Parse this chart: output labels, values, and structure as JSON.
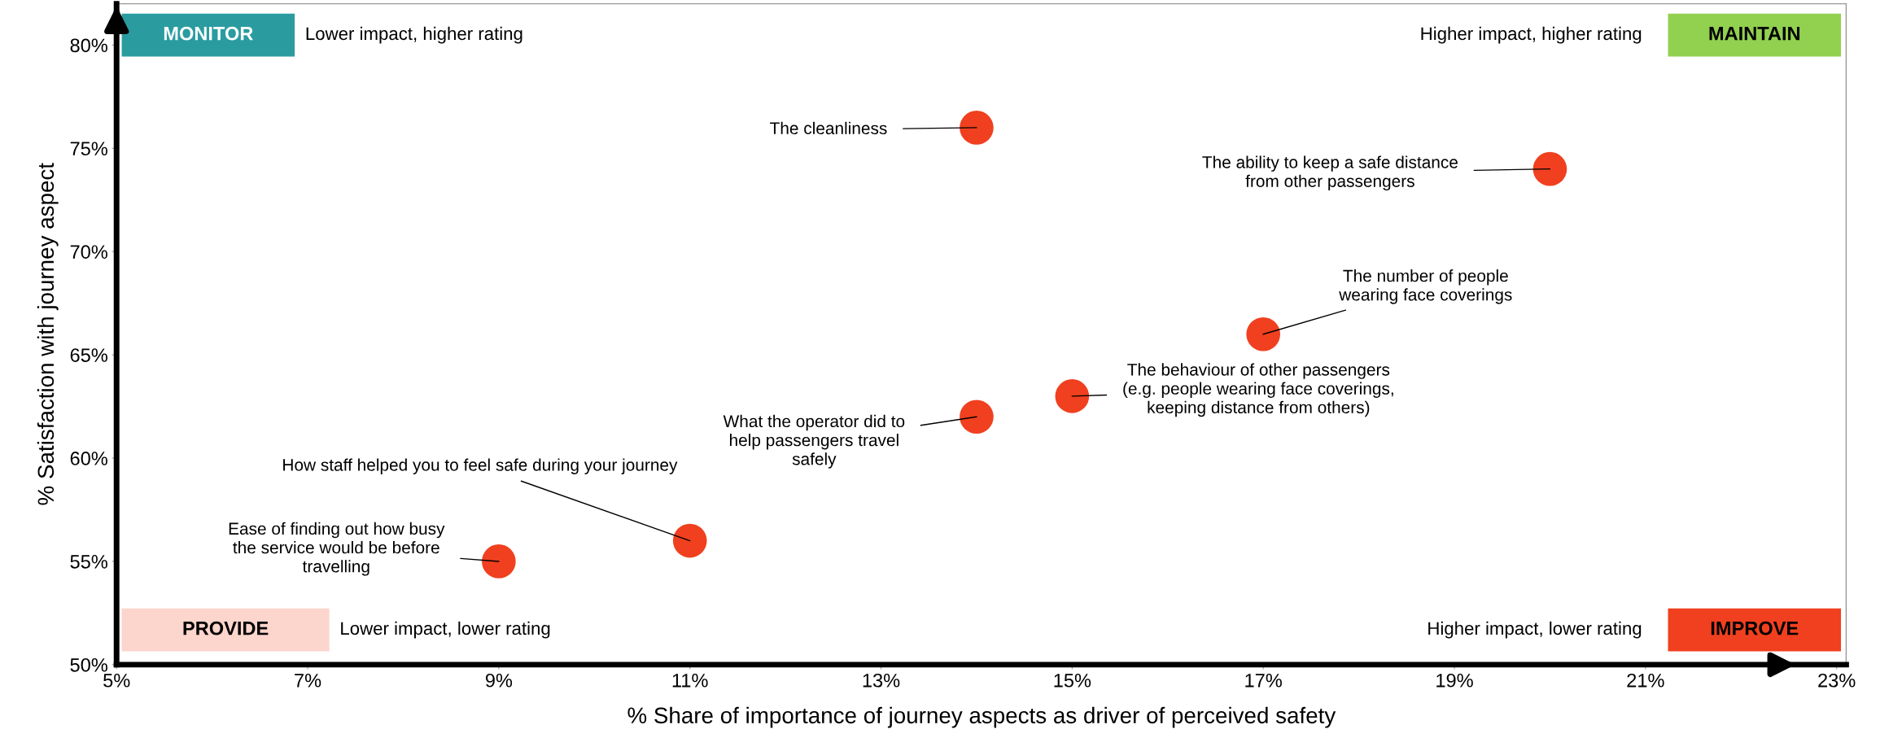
{
  "chart_data": {
    "type": "scatter",
    "xlabel": "% Share of importance of journey aspects as driver of perceived safety",
    "ylabel": "% Satisfaction with journey aspect",
    "x": [
      14,
      20,
      17,
      15,
      14,
      11,
      9
    ],
    "series": [
      {
        "color": "#f0401f",
        "values": [
          76,
          74,
          66,
          63,
          62,
          56,
          55
        ]
      }
    ],
    "marker": "circle",
    "xlim": [
      5,
      23.1
    ],
    "ylim": [
      50,
      82
    ],
    "xticks": [
      {
        "value": 5,
        "label": "5%"
      },
      {
        "value": 7,
        "label": "7%"
      },
      {
        "value": 9,
        "label": "9%"
      },
      {
        "value": 11,
        "label": "11%"
      },
      {
        "value": 13,
        "label": "13%"
      },
      {
        "value": 15,
        "label": "15%"
      },
      {
        "value": 17,
        "label": "17%"
      },
      {
        "value": 19,
        "label": "19%"
      },
      {
        "value": 21,
        "label": "21%"
      },
      {
        "value": 23,
        "label": "23%"
      }
    ],
    "yticks": [
      {
        "value": 50,
        "label": "50%"
      },
      {
        "value": 55,
        "label": "55%"
      },
      {
        "value": 60,
        "label": "60%"
      },
      {
        "value": 65,
        "label": "65%"
      },
      {
        "value": 70,
        "label": "70%"
      },
      {
        "value": 75,
        "label": "75%"
      },
      {
        "value": 80,
        "label": "80%"
      }
    ],
    "grid": false,
    "legend": false,
    "annotations": [
      {
        "text": "The cleanliness",
        "x": 14,
        "y": 76
      },
      {
        "text": "The ability to keep a safe distance\nfrom other passengers",
        "x": 20,
        "y": 74
      },
      {
        "text": "The number of people\nwearing face coverings",
        "x": 17,
        "y": 66
      },
      {
        "text": "The behaviour of other passengers\n(e.g. people wearing face coverings,\nkeeping distance from others)",
        "x": 15,
        "y": 63
      },
      {
        "text": "What the operator did to\nhelp passengers travel\nsafely",
        "x": 14,
        "y": 62
      },
      {
        "text": "How staff helped you to feel safe during your journey",
        "x": 11,
        "y": 56
      },
      {
        "text": "Ease of finding out how busy\nthe service would be before\ntravelling",
        "x": 9,
        "y": 55
      },
      "MONITOR",
      "Lower impact, higher rating",
      "MAINTAIN",
      "Higher impact, higher rating",
      "PROVIDE",
      "Lower impact, lower rating",
      "IMPROVE",
      "Higher impact, lower rating"
    ]
  }
}
